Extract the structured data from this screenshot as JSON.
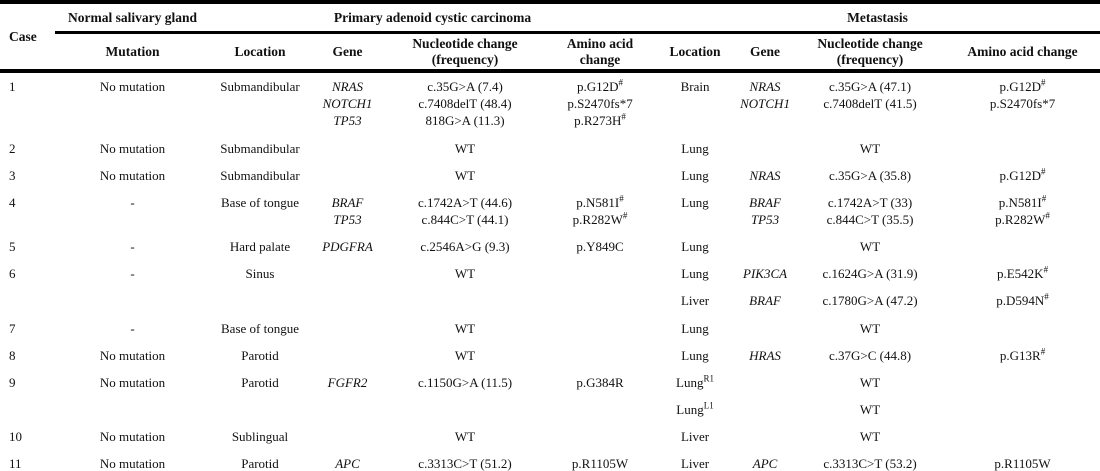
{
  "table": {
    "header": {
      "case": "Case",
      "groups": {
        "normal": "Normal salivary gland",
        "primary": "Primary adenoid cystic carcinoma",
        "metastasis": "Metastasis"
      },
      "columns": {
        "mutation": "Mutation",
        "location": "Location",
        "gene": "Gene",
        "nucleotide": "Nucleotide change (frequency)",
        "amino": "Amino acid change"
      }
    },
    "rows": [
      {
        "case": "1",
        "mutation": "No mutation",
        "p_location": "Submandibular",
        "p_gene": [
          "NRAS",
          "NOTCH1",
          "TP53"
        ],
        "p_nucleotide": [
          "c.35G>A (7.4)",
          "c.7408delT (48.4)",
          "818G>A (11.3)"
        ],
        "p_amino": [
          "p.G12D^{#}",
          "p.S2470fs*7",
          "p.R273H^{#}"
        ],
        "m_location": "Brain",
        "m_gene": [
          "NRAS",
          "NOTCH1"
        ],
        "m_nucleotide": [
          "c.35G>A (47.1)",
          "c.7408delT (41.5)"
        ],
        "m_amino": [
          "p.G12D^{#}",
          "p.S2470fs*7"
        ]
      },
      {
        "case": "2",
        "mutation": "No mutation",
        "p_location": "Submandibular",
        "p_nucleotide": "WT",
        "m_location": "Lung",
        "m_nucleotide": "WT"
      },
      {
        "case": "3",
        "mutation": "No mutation",
        "p_location": "Submandibular",
        "p_nucleotide": "WT",
        "m_location": "Lung",
        "m_gene": "NRAS",
        "m_nucleotide": "c.35G>A (35.8)",
        "m_amino": "p.G12D^{#}"
      },
      {
        "case": "4",
        "mutation": "-",
        "p_location": "Base of tongue",
        "p_gene": [
          "BRAF",
          "TP53"
        ],
        "p_nucleotide": [
          "c.1742A>T (44.6)",
          "c.844C>T (44.1)"
        ],
        "p_amino": [
          "p.N581I^{#}",
          "p.R282W^{#}"
        ],
        "m_location": "Lung",
        "m_gene": [
          "BRAF",
          "TP53"
        ],
        "m_nucleotide": [
          "c.1742A>T (33)",
          "c.844C>T (35.5)"
        ],
        "m_amino": [
          "p.N581I^{#}",
          "p.R282W^{#}"
        ]
      },
      {
        "case": "5",
        "mutation": "-",
        "p_location": "Hard palate",
        "p_gene": "PDGFRA",
        "p_nucleotide": "c.2546A>G (9.3)",
        "p_amino": "p.Y849C",
        "m_location": "Lung",
        "m_nucleotide": "WT"
      },
      {
        "case": "6",
        "mutation": "-",
        "p_location": "Sinus",
        "p_nucleotide": "WT",
        "m_location": "Lung",
        "m_gene": "PIK3CA",
        "m_nucleotide": "c.1624G>A (31.9)",
        "m_amino": "p.E542K^{#}"
      },
      {
        "m_location": "Liver",
        "m_gene": "BRAF",
        "m_nucleotide": "c.1780G>A (47.2)",
        "m_amino": "p.D594N^{#}"
      },
      {
        "case": "7",
        "mutation": "-",
        "p_location": "Base of tongue",
        "p_nucleotide": "WT",
        "m_location": "Lung",
        "m_nucleotide": "WT"
      },
      {
        "case": "8",
        "mutation": "No mutation",
        "p_location": "Parotid",
        "p_nucleotide": "WT",
        "m_location": "Lung",
        "m_gene": "HRAS",
        "m_nucleotide": "c.37G>C (44.8)",
        "m_amino": "p.G13R^{#}"
      },
      {
        "case": "9",
        "mutation": "No mutation",
        "p_location": "Parotid",
        "p_gene": "FGFR2",
        "p_nucleotide": "c.1150G>A (11.5)",
        "p_amino": "p.G384R",
        "m_location": "Lung^{R1}",
        "m_nucleotide": "WT"
      },
      {
        "m_location": "Lung^{L1}",
        "m_nucleotide": "WT"
      },
      {
        "case": "10",
        "mutation": "No mutation",
        "p_location": "Sublingual",
        "p_nucleotide": "WT",
        "m_location": "Liver",
        "m_nucleotide": "WT"
      },
      {
        "case": "11",
        "mutation": "No mutation",
        "p_location": "Parotid",
        "p_gene": "APC",
        "p_nucleotide": "c.3313C>T (51.2)",
        "p_amino": "p.R1105W",
        "m_location": "Liver",
        "m_gene": "APC",
        "m_nucleotide": "c.3313C>T (53.2)",
        "m_amino": "p.R1105W"
      }
    ]
  }
}
